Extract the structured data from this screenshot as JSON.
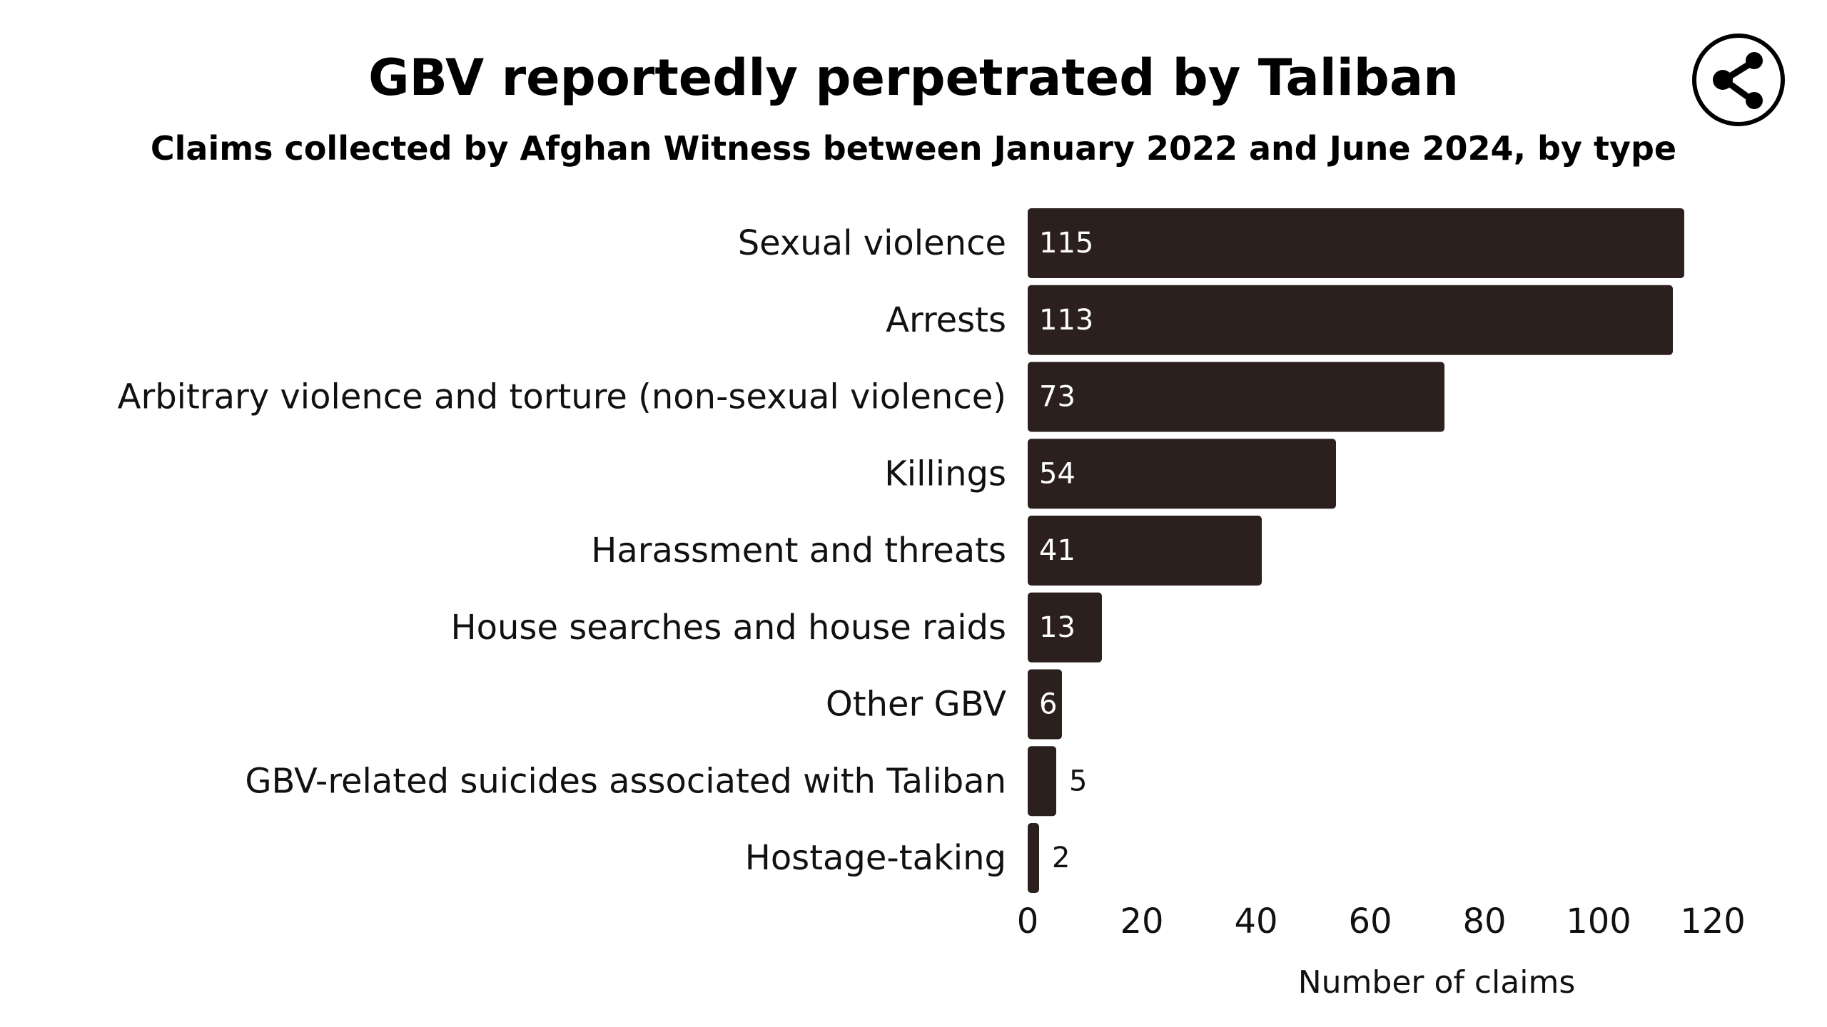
{
  "header": {
    "title": "GBV reportedly perpetrated by Taliban",
    "subtitle": "Claims collected by Afghan Witness between January 2022 and June 2024, by type",
    "share_icon": "share-icon"
  },
  "colors": {
    "bar": "#2b201d",
    "label_inside": "#ffffff",
    "label_outside": "#111111",
    "text": "#111111",
    "background": "#ffffff"
  },
  "chart_data": {
    "type": "bar",
    "orientation": "horizontal",
    "title": "GBV reportedly perpetrated by Taliban",
    "subtitle": "Claims collected by Afghan Witness between January 2022 and June 2024, by type",
    "categories": [
      "Sexual violence",
      "Arrests",
      "Arbitrary violence and torture (non-sexual violence)",
      "Killings",
      "Harassment and threats",
      "House searches and house raids",
      "Other GBV",
      "GBV-related suicides associated with Taliban",
      "Hostage-taking"
    ],
    "values": [
      115,
      113,
      73,
      54,
      41,
      13,
      6,
      5,
      2
    ],
    "xlabel": "Number of claims",
    "ylabel": "",
    "xlim": [
      0,
      120
    ],
    "xticks": [
      0,
      20,
      40,
      60,
      80,
      100,
      120
    ],
    "grid": false,
    "legend": "none",
    "data_labels": true
  }
}
